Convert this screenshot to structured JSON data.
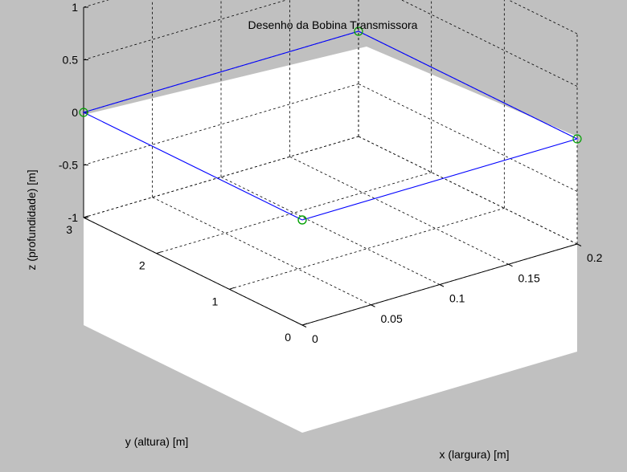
{
  "colors": {
    "figure_background": "#c0c0c0",
    "axes_background": "#ffffff",
    "series_line": "#0000ff",
    "series_marker": "#00a000"
  },
  "chart_data": {
    "type": "line",
    "title": "Desenho da Bobina Transmissora",
    "xlabel": "x (largura) [m]",
    "ylabel": "y (altura) [m]",
    "zlabel": "z (profundidade) [m]",
    "xlim": [
      0,
      0.2
    ],
    "ylim": [
      0,
      3
    ],
    "zlim": [
      -1,
      1
    ],
    "xticks": [
      0,
      0.05,
      0.1,
      0.15,
      0.2
    ],
    "xtick_labels": [
      "0",
      "0.05",
      "0.1",
      "0.15",
      "0.2"
    ],
    "yticks": [
      0,
      1,
      2,
      3
    ],
    "ytick_labels": [
      "0",
      "1",
      "2",
      "3"
    ],
    "zticks": [
      -1,
      -0.5,
      0,
      0.5,
      1
    ],
    "ztick_labels": [
      "-1",
      "-0.5",
      "0",
      "0.5",
      "1"
    ],
    "grid": true,
    "legend": "none",
    "marker": "circle",
    "series": [
      {
        "points": [
          {
            "x": 0,
            "y": 0,
            "z": 0
          },
          {
            "x": 0.2,
            "y": 0,
            "z": 0
          },
          {
            "x": 0.2,
            "y": 3,
            "z": 0
          },
          {
            "x": 0,
            "y": 3,
            "z": 0
          },
          {
            "x": 0,
            "y": 0,
            "z": 0
          }
        ]
      }
    ]
  }
}
